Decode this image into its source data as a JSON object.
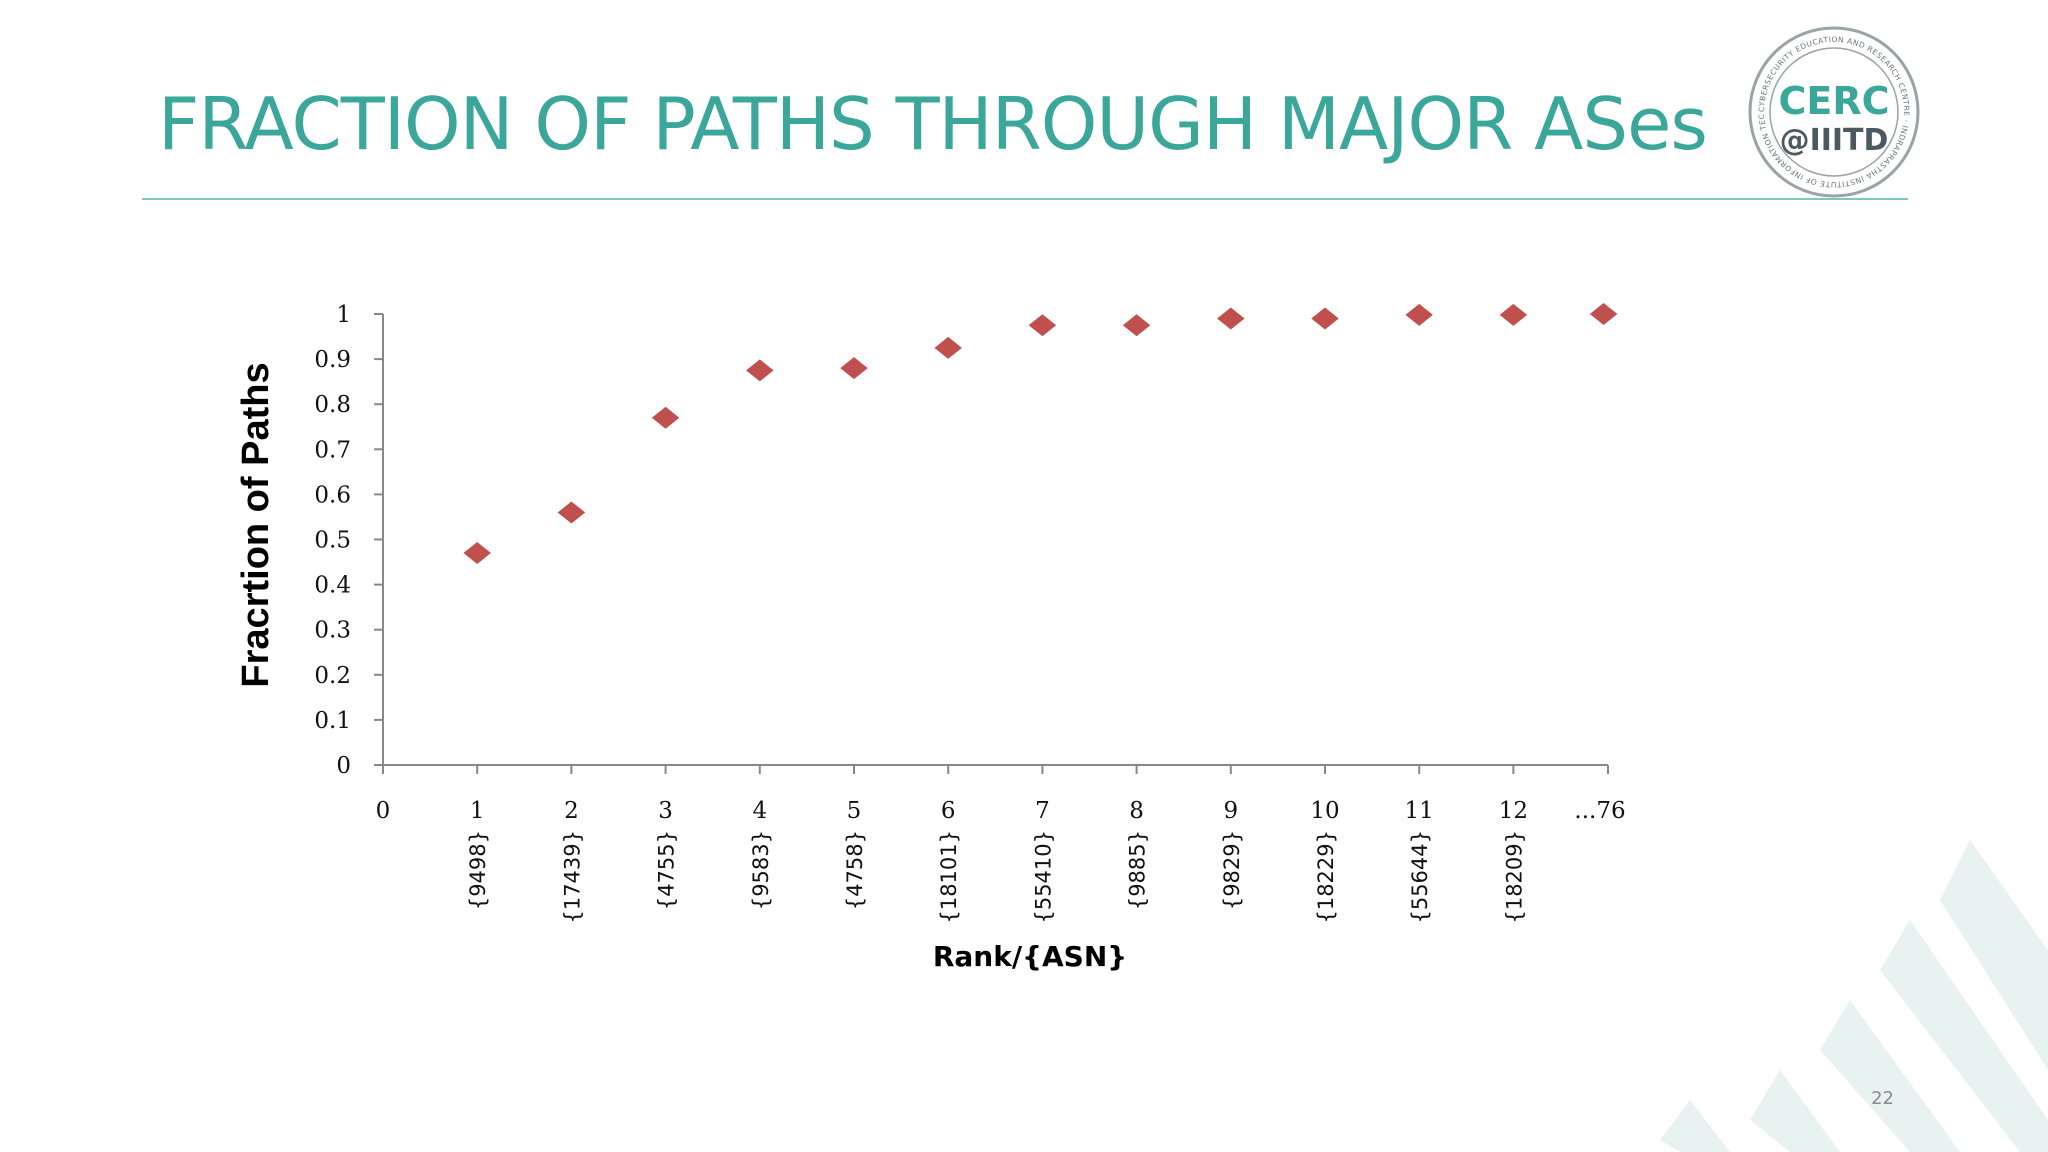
{
  "slide": {
    "title": "FRACTION OF PATHS THROUGH MAJOR ASes",
    "number": "22",
    "title_color": "#3aa79a",
    "rule_color": "#7fc6bd"
  },
  "logo": {
    "wordmark_top": "CERC",
    "wordmark_bottom": "@IIITD",
    "ring_text": "CYBERSECURITY EDUCATION AND RESEARCH CENTRE · INDRAPRASTHA INSTITUTE OF INFORMATION TECHNOLOGY DELHI",
    "primary_color": "#3aa79a",
    "dark_color": "#4b5a61"
  },
  "chart_data": {
    "type": "scatter",
    "ylabel": "Fracrtion of Paths",
    "xlabel": "Rank/{ASN}",
    "ylim": [
      0,
      1
    ],
    "yticks": [
      "0",
      "0.1",
      "0.2",
      "0.3",
      "0.4",
      "0.5",
      "0.6",
      "0.7",
      "0.8",
      "0.9",
      "1"
    ],
    "xticks": [
      "0",
      "1",
      "2",
      "3",
      "4",
      "5",
      "6",
      "7",
      "8",
      "9",
      "10",
      "11",
      "12",
      "...76"
    ],
    "asn_labels": [
      "{9498}",
      "{17439}",
      "{4755}",
      "{9583}",
      "{4758}",
      "{18101}",
      "{55410}",
      "{9885}",
      "{9829}",
      "{18229}",
      "{55644}",
      "{18209}"
    ],
    "points": [
      {
        "rank": "1",
        "asn": "{9498}",
        "y": 0.47
      },
      {
        "rank": "2",
        "asn": "{17439}",
        "y": 0.56
      },
      {
        "rank": "3",
        "asn": "{4755}",
        "y": 0.77
      },
      {
        "rank": "4",
        "asn": "{9583}",
        "y": 0.875
      },
      {
        "rank": "5",
        "asn": "{4758}",
        "y": 0.88
      },
      {
        "rank": "6",
        "asn": "{18101}",
        "y": 0.925
      },
      {
        "rank": "7",
        "asn": "{55410}",
        "y": 0.975
      },
      {
        "rank": "8",
        "asn": "{9885}",
        "y": 0.975
      },
      {
        "rank": "9",
        "asn": "{9829}",
        "y": 0.99
      },
      {
        "rank": "10",
        "asn": "{18229}",
        "y": 0.99
      },
      {
        "rank": "11",
        "asn": "{55644}",
        "y": 0.998
      },
      {
        "rank": "12",
        "asn": "{18209}",
        "y": 0.998
      },
      {
        "rank": "...76",
        "asn": "",
        "y": 1.0
      }
    ],
    "grid": false,
    "legend": "none",
    "marker": "diamond",
    "marker_color": "#c0504d"
  }
}
